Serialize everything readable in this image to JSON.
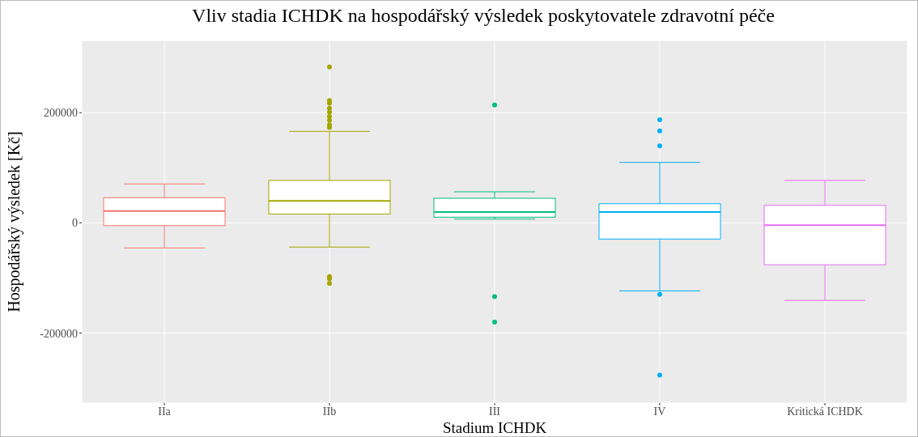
{
  "chart_data": {
    "type": "box",
    "title": "Vliv stadia ICHDK na hospodářský výsledek poskytovatele zdravotní péče",
    "xlabel": "Stadium ICHDK",
    "ylabel": "Hospodářský výsledek [Kč]",
    "categories": [
      "IIa",
      "IIb",
      "III",
      "IV",
      "Kritická ICHDK"
    ],
    "colors": [
      "#f8766d",
      "#a3a500",
      "#00bf7d",
      "#00b0f6",
      "#e76bf3"
    ],
    "boxes": [
      {
        "low": -45600,
        "q1": -5000,
        "median": 21500,
        "q3": 45600,
        "high": 70600
      },
      {
        "low": -44000,
        "q1": 16000,
        "median": 40000,
        "q3": 77000,
        "high": 166000,
        "outliers": [
          283000,
          222000,
          217000,
          208000,
          201000,
          193000,
          186000,
          178000,
          173000,
          -97600,
          -101500,
          -110000
        ]
      },
      {
        "low": 6800,
        "q1": 10300,
        "median": 19600,
        "q3": 44600,
        "high": 56300,
        "outliers": [
          214000,
          -134000,
          -180000
        ]
      },
      {
        "low": -123500,
        "q1": -29400,
        "median": 19600,
        "q3": 34700,
        "high": 109700,
        "outliers": [
          187000,
          167000,
          139700,
          -130000,
          -276500
        ]
      },
      {
        "low": -140700,
        "q1": -76000,
        "median": -4400,
        "q3": 31800,
        "high": 77000
      }
    ],
    "ylim": [
      -327000,
      331000
    ],
    "yticks": [
      -200000,
      0,
      200000
    ],
    "grid": true
  }
}
